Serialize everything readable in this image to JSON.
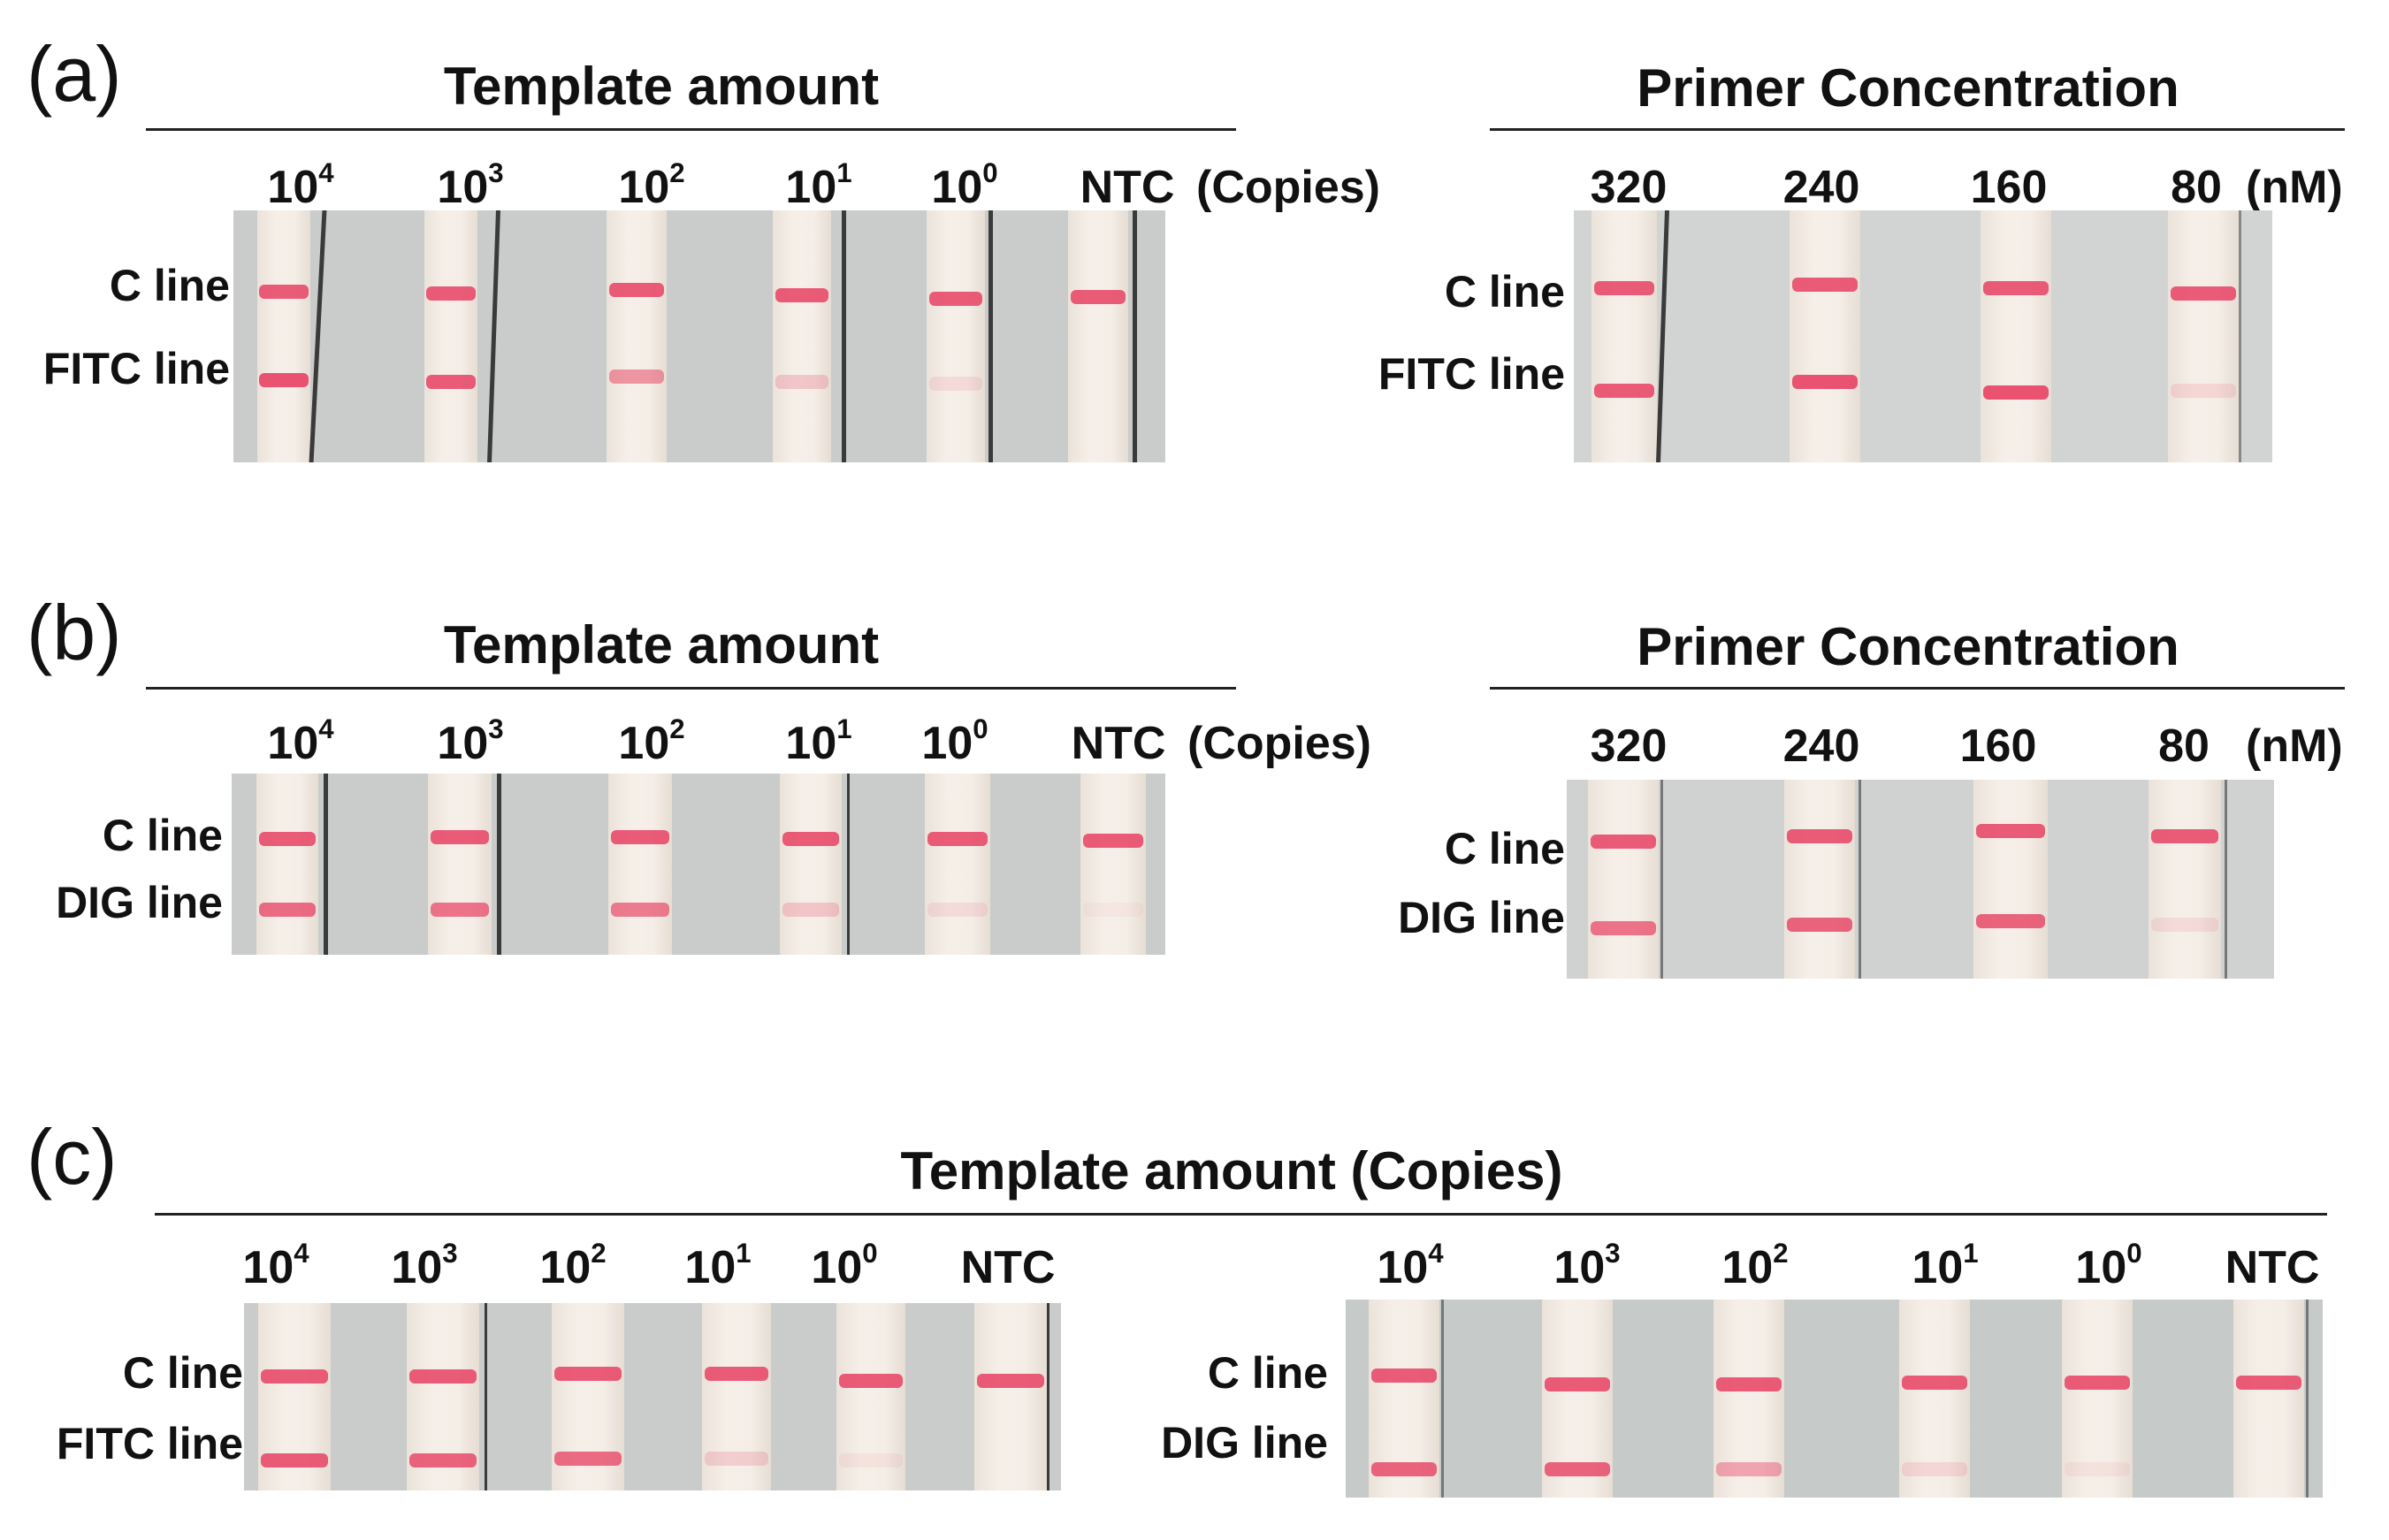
{
  "band_color": "#e84a6a",
  "panels": {
    "a": {
      "letter": "(a)",
      "left": {
        "title": "Template amount",
        "lanes": [
          {
            "base": "10",
            "exp": "4"
          },
          {
            "base": "10",
            "exp": "3"
          },
          {
            "base": "10",
            "exp": "2"
          },
          {
            "base": "10",
            "exp": "1"
          },
          {
            "base": "10",
            "exp": "0"
          },
          {
            "base": "NTC",
            "exp": ""
          }
        ],
        "unit": "(Copies)",
        "row1": "C line",
        "row2": "FITC line",
        "test_intensity": [
          0.95,
          0.9,
          0.55,
          0.25,
          0.12,
          0.0
        ]
      },
      "right": {
        "title": "Primer Concentration",
        "lanes": [
          "320",
          "240",
          "160",
          "80"
        ],
        "unit": "(nM)",
        "row1": "C line",
        "row2": "FITC line",
        "test_intensity": [
          0.9,
          0.95,
          0.95,
          0.15
        ]
      }
    },
    "b": {
      "letter": "(b)",
      "left": {
        "title": "Template amount",
        "lanes": [
          {
            "base": "10",
            "exp": "4"
          },
          {
            "base": "10",
            "exp": "3"
          },
          {
            "base": "10",
            "exp": "2"
          },
          {
            "base": "10",
            "exp": "1"
          },
          {
            "base": "10",
            "exp": "0"
          },
          {
            "base": "NTC",
            "exp": ""
          }
        ],
        "unit": "(Copies)",
        "row1": "C line",
        "row2": "DIG line",
        "test_intensity": [
          0.8,
          0.75,
          0.7,
          0.25,
          0.12,
          0.05
        ]
      },
      "right": {
        "title": "Primer Concentration",
        "lanes": [
          "320",
          "240",
          "160",
          "80"
        ],
        "unit": "(nM)",
        "row1": "C line",
        "row2": "DIG line",
        "test_intensity": [
          0.75,
          0.85,
          0.85,
          0.12
        ]
      }
    },
    "c": {
      "letter": "(c)",
      "title": "Template amount (Copies)",
      "left": {
        "lanes": [
          {
            "base": "10",
            "exp": "4"
          },
          {
            "base": "10",
            "exp": "3"
          },
          {
            "base": "10",
            "exp": "2"
          },
          {
            "base": "10",
            "exp": "1"
          },
          {
            "base": "10",
            "exp": "0"
          },
          {
            "base": "NTC",
            "exp": ""
          }
        ],
        "row1": "C line",
        "row2": "FITC line",
        "test_intensity": [
          0.9,
          0.85,
          0.8,
          0.2,
          0.08,
          0.0
        ]
      },
      "right": {
        "lanes": [
          {
            "base": "10",
            "exp": "4"
          },
          {
            "base": "10",
            "exp": "3"
          },
          {
            "base": "10",
            "exp": "2"
          },
          {
            "base": "10",
            "exp": "1"
          },
          {
            "base": "10",
            "exp": "0"
          },
          {
            "base": "NTC",
            "exp": ""
          }
        ],
        "row1": "C line",
        "row2": "DIG line",
        "test_intensity": [
          0.85,
          0.85,
          0.45,
          0.15,
          0.08,
          0.0
        ]
      }
    }
  }
}
